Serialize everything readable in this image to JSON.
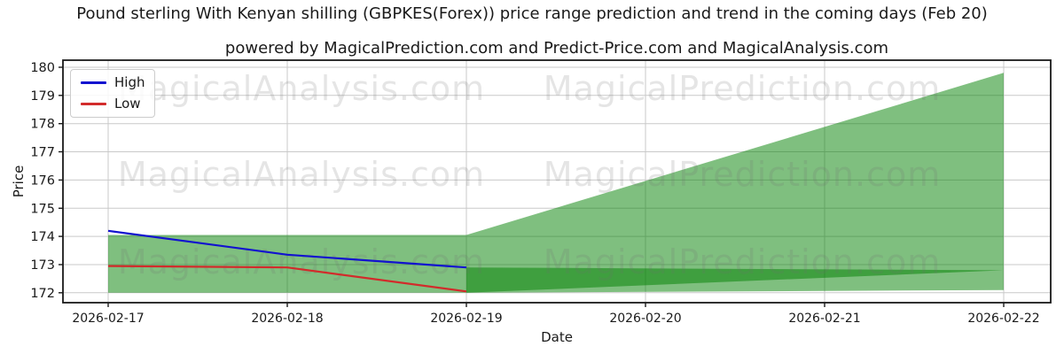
{
  "figure": {
    "title": "Pound sterling With Kenyan shilling (GBPKES(Forex)) price range prediction and trend in the coming days (Feb 20)",
    "subtitle": "powered by MagicalPrediction.com and Predict-Price.com and MagicalAnalysis.com",
    "xlabel": "Date",
    "ylabel": "Price"
  },
  "legend": {
    "items": [
      {
        "label": "High",
        "color": "#1212cf"
      },
      {
        "label": "Low",
        "color": "#d22b2b"
      }
    ]
  },
  "watermarks": {
    "left_text": "MagicalAnalysis.com",
    "right_text": "MagicalPrediction.com",
    "rows": 3
  },
  "chart_data": {
    "type": "line",
    "title": "Pound sterling With Kenyan shilling (GBPKES(Forex)) price range prediction and trend in the coming days (Feb 20)",
    "subtitle": "powered by MagicalPrediction.com and Predict-Price.com and MagicalAnalysis.com",
    "xlabel": "Date",
    "ylabel": "Price",
    "x_categories": [
      "2026-02-17",
      "2026-02-18",
      "2026-02-19",
      "2026-02-20",
      "2026-02-21",
      "2026-02-22"
    ],
    "series": [
      {
        "name": "High",
        "color": "#1212cf",
        "x_index": [
          0,
          1,
          2
        ],
        "values": [
          174.2,
          173.35,
          172.9
        ]
      },
      {
        "name": "Low",
        "color": "#d22b2b",
        "x_index": [
          0,
          1,
          2
        ],
        "values": [
          172.95,
          172.9,
          172.05
        ]
      }
    ],
    "bands": [
      {
        "name": "history-range-and-high-forecast-band",
        "color": "#008000",
        "opacity": 0.5,
        "x_index": [
          0,
          2,
          5
        ],
        "lower": [
          172.0,
          172.0,
          172.8
        ],
        "upper": [
          174.05,
          174.05,
          179.8
        ]
      },
      {
        "name": "low-forecast-band",
        "color": "#008000",
        "opacity": 0.5,
        "x_index": [
          2,
          5
        ],
        "lower": [
          172.0,
          172.1
        ],
        "upper": [
          172.9,
          172.8
        ]
      }
    ],
    "ylim": [
      171.65,
      180.25
    ],
    "yticks": [
      172,
      173,
      174,
      175,
      176,
      177,
      178,
      179,
      180
    ],
    "grid": true,
    "legend_position": "upper left",
    "legend_entries": [
      "High",
      "Low"
    ]
  }
}
